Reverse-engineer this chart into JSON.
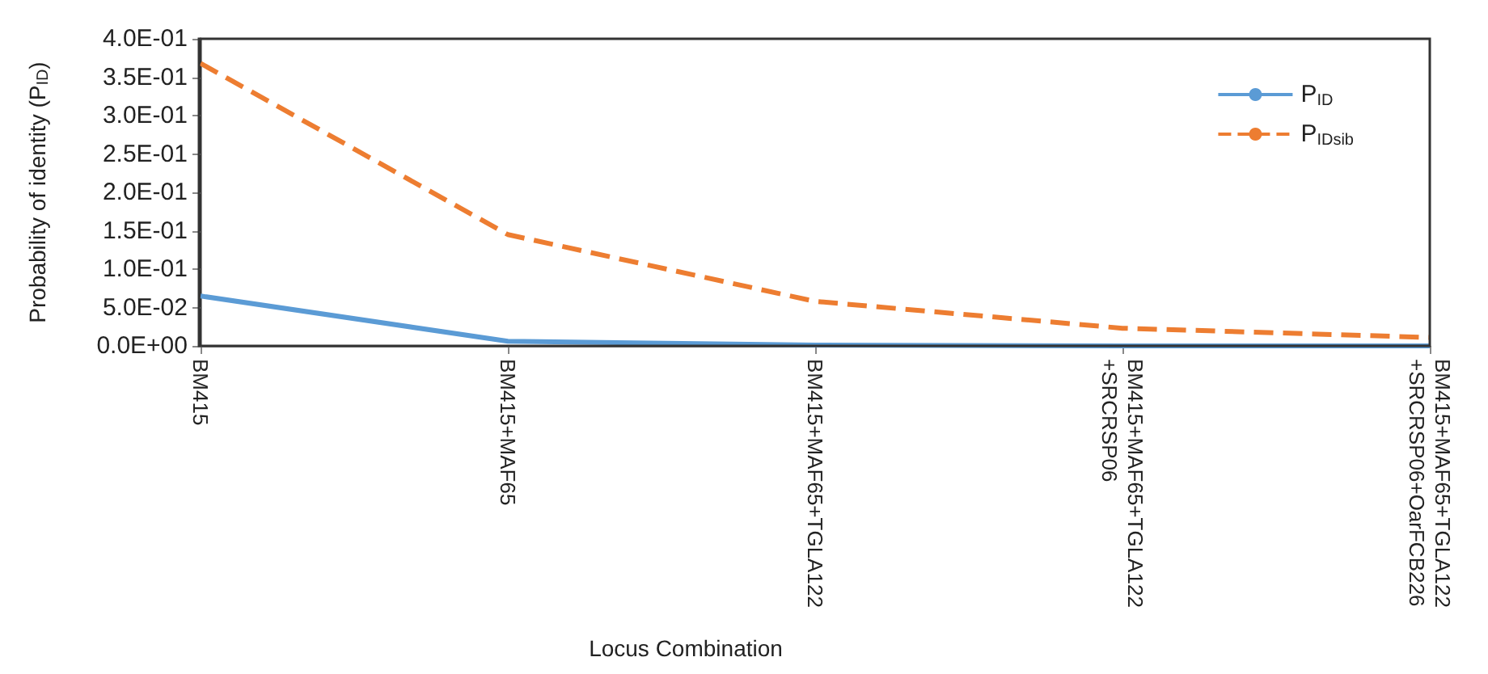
{
  "chart_data": {
    "type": "line",
    "xlabel": "Locus Combination",
    "ylabel": "Probability of identity (P$_{ID}$)",
    "categories": [
      "BM415",
      "BM415+MAF65",
      "BM415+MAF65+TGLA122",
      "BM415+MAF65+TGLA122+SRCRSP06",
      "BM415+MAF65+TGLA122+SRCRSP06+OarFCB226"
    ],
    "series": [
      {
        "name": "P$_{ID}$",
        "color": "#5b9bd5",
        "line_style": "solid",
        "values": [
          0.065,
          0.006,
          0.001,
          0,
          0
        ]
      },
      {
        "name": "P$_{IDsib}$",
        "color": "#ed7d31",
        "line_style": "dashed",
        "values": [
          0.368,
          0.145,
          0.058,
          0.023,
          0.011
        ]
      }
    ],
    "ylim": [
      0,
      0.4
    ],
    "yticks": [
      {
        "value": 0,
        "label": "0.0E+00"
      },
      {
        "value": 0.05,
        "label": "5.0E-02"
      },
      {
        "value": 0.1,
        "label": "1.0E-01"
      },
      {
        "value": 0.15,
        "label": "1.5E-01"
      },
      {
        "value": 0.2,
        "label": "2.0E-01"
      },
      {
        "value": 0.25,
        "label": "2.5E-01"
      },
      {
        "value": 0.3,
        "label": "3.0E-01"
      },
      {
        "value": 0.35,
        "label": "3.5E-01"
      },
      {
        "value": 0.4,
        "label": "4.0E-01"
      }
    ],
    "grid": false,
    "legend": "top right",
    "marker": "none"
  }
}
